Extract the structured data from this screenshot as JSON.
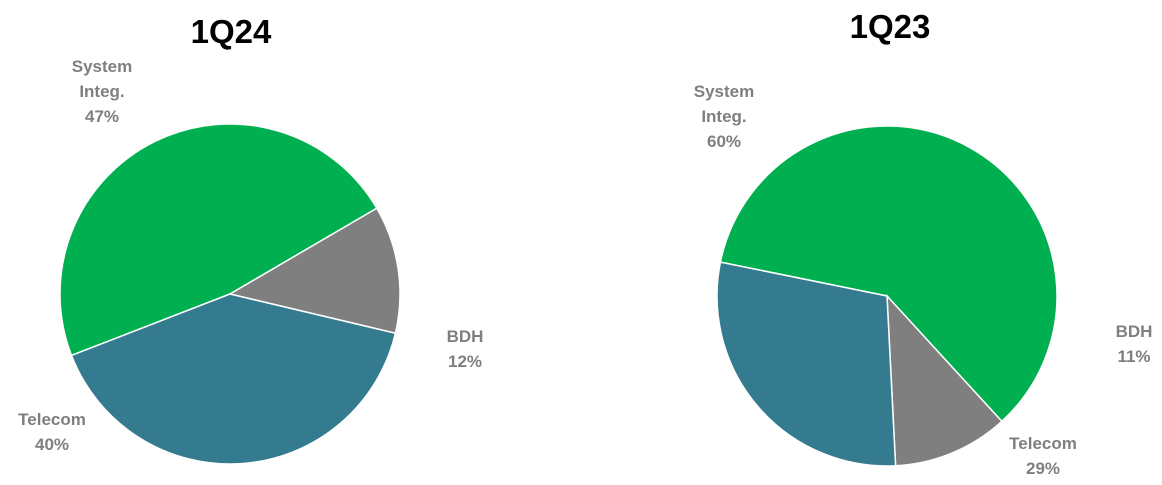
{
  "chart_data": [
    {
      "type": "pie",
      "title": "1Q24",
      "slices": [
        {
          "label": [
            "System",
            "Integ."
          ],
          "value": 47,
          "value_label": "47%",
          "color": "#00b050"
        },
        {
          "label": [
            "BDH"
          ],
          "value": 12,
          "value_label": "12%",
          "color": "#7f7f7f"
        },
        {
          "label": [
            "Telecom"
          ],
          "value": 40,
          "value_label": "40%",
          "color": "#357b8f"
        }
      ]
    },
    {
      "type": "pie",
      "title": "1Q23",
      "slices": [
        {
          "label": [
            "System",
            "Integ."
          ],
          "value": 60,
          "value_label": "60%",
          "color": "#00b050"
        },
        {
          "label": [
            "BDH"
          ],
          "value": 11,
          "value_label": "11%",
          "color": "#7f7f7f"
        },
        {
          "label": [
            "Telecom"
          ],
          "value": 29,
          "value_label": "29%",
          "color": "#357b8f"
        }
      ]
    }
  ]
}
